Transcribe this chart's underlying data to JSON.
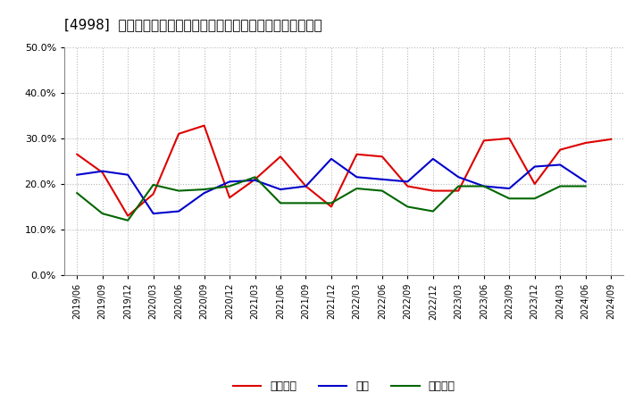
{
  "title": "[4998]  売上債権、在庫、買入債務の総資産に対する比率の推移",
  "x_labels": [
    "2019/06",
    "2019/09",
    "2019/12",
    "2020/03",
    "2020/06",
    "2020/09",
    "2020/12",
    "2021/03",
    "2021/06",
    "2021/09",
    "2021/12",
    "2022/03",
    "2022/06",
    "2022/09",
    "2022/12",
    "2023/03",
    "2023/06",
    "2023/09",
    "2023/12",
    "2024/03",
    "2024/06",
    "2024/09"
  ],
  "売上債権": [
    0.265,
    0.225,
    0.13,
    0.178,
    0.31,
    0.328,
    0.17,
    0.21,
    0.26,
    0.195,
    0.15,
    0.265,
    0.26,
    0.195,
    0.185,
    0.185,
    0.295,
    0.3,
    0.2,
    0.275,
    0.29,
    0.298
  ],
  "在庫": [
    0.22,
    0.228,
    0.22,
    0.135,
    0.14,
    0.18,
    0.205,
    0.208,
    0.188,
    0.195,
    0.255,
    0.215,
    0.21,
    0.205,
    0.255,
    0.215,
    0.195,
    0.19,
    0.238,
    0.242,
    0.205,
    null
  ],
  "買入債務": [
    0.18,
    0.135,
    0.12,
    0.198,
    0.185,
    0.188,
    0.195,
    0.215,
    0.158,
    0.158,
    0.158,
    0.19,
    0.185,
    0.15,
    0.14,
    0.195,
    0.195,
    0.168,
    0.168,
    0.195,
    0.195,
    null
  ],
  "line_colors": {
    "売上債権": "#dd0000",
    "在庫": "#0000cc",
    "買入債務": "#006600"
  },
  "ylim": [
    0.0,
    0.5
  ],
  "yticks": [
    0.0,
    0.1,
    0.2,
    0.3,
    0.4,
    0.5
  ],
  "background_color": "#ffffff",
  "grid_color": "#999999",
  "title_fontsize": 11,
  "legend_labels": [
    "売上債権",
    "在庫",
    "買入債務"
  ]
}
